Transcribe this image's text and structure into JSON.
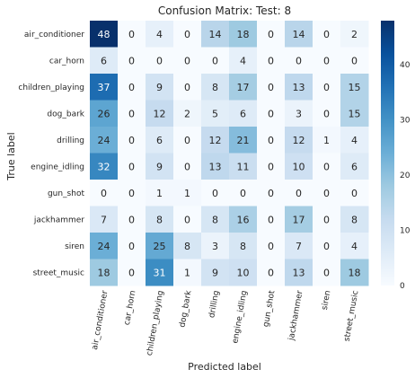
{
  "chart_data": {
    "type": "heatmap",
    "title": "Confusion Matrix: Test: 8",
    "xlabel": "Predicted label",
    "ylabel": "True label",
    "x_categories": [
      "air_conditioner",
      "car_horn",
      "children_playing",
      "dog_bark",
      "drilling",
      "engine_idling",
      "gun_shot",
      "jackhammer",
      "siren",
      "street_music"
    ],
    "y_categories": [
      "air_conditioner",
      "car_horn",
      "children_playing",
      "dog_bark",
      "drilling",
      "engine_idling",
      "gun_shot",
      "jackhammer",
      "siren",
      "street_music"
    ],
    "values": [
      [
        48,
        0,
        4,
        0,
        14,
        18,
        0,
        14,
        0,
        2
      ],
      [
        6,
        0,
        0,
        0,
        0,
        4,
        0,
        0,
        0,
        0
      ],
      [
        37,
        0,
        9,
        0,
        8,
        17,
        0,
        13,
        0,
        15
      ],
      [
        26,
        0,
        12,
        2,
        5,
        6,
        0,
        3,
        0,
        15
      ],
      [
        24,
        0,
        6,
        0,
        12,
        21,
        0,
        12,
        1,
        4
      ],
      [
        32,
        0,
        9,
        0,
        13,
        11,
        0,
        10,
        0,
        6
      ],
      [
        0,
        0,
        1,
        1,
        0,
        0,
        0,
        0,
        0,
        0
      ],
      [
        7,
        0,
        8,
        0,
        8,
        16,
        0,
        17,
        0,
        8
      ],
      [
        24,
        0,
        25,
        8,
        3,
        8,
        0,
        7,
        0,
        4
      ],
      [
        18,
        0,
        31,
        1,
        9,
        10,
        0,
        13,
        0,
        18
      ]
    ],
    "colormap": "Blues",
    "color_range": [
      0,
      48
    ],
    "colorbar_ticks": [
      0,
      10,
      20,
      30,
      40
    ],
    "colors": {
      "low": "#f7fbff",
      "high": "#08306b"
    }
  }
}
